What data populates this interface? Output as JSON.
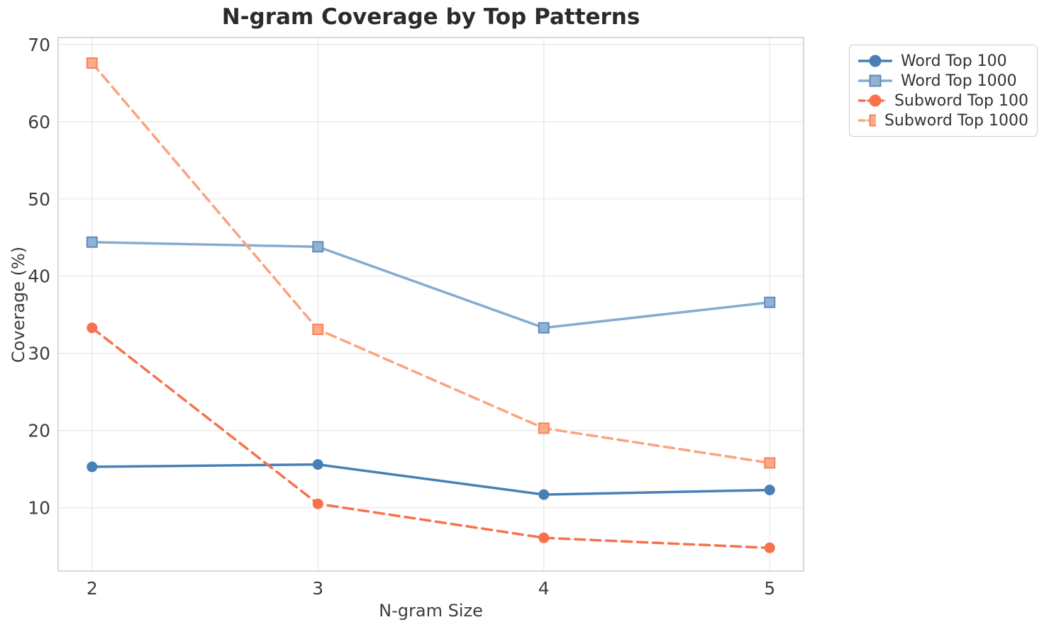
{
  "chart_data": {
    "type": "line",
    "title": "N-gram Coverage by Top Patterns",
    "xlabel": "N-gram Size",
    "ylabel": "Coverage (%)",
    "x": [
      2,
      3,
      4,
      5
    ],
    "xticks": [
      2,
      3,
      4,
      5
    ],
    "yticks": [
      10,
      20,
      30,
      40,
      50,
      60,
      70
    ],
    "xlim": [
      1.85,
      5.15
    ],
    "ylim": [
      1.8,
      70.9
    ],
    "grid": true,
    "legend_position": "outside-upper-right",
    "series": [
      {
        "name": "Word Top 100",
        "values": [
          15.3,
          15.6,
          11.7,
          12.3
        ],
        "color": "#4680b4",
        "marker_fill": "#4680b4",
        "marker_edge": "#4680b4",
        "line_style": "solid",
        "marker": "circle"
      },
      {
        "name": "Word Top 1000",
        "values": [
          44.4,
          43.8,
          33.3,
          36.6
        ],
        "color": "#85abd1",
        "marker_fill": "#8fb2d5",
        "marker_edge": "#5d8cbe",
        "line_style": "solid",
        "marker": "square"
      },
      {
        "name": "Subword Top 100",
        "values": [
          33.3,
          10.5,
          6.1,
          4.8
        ],
        "color": "#f7714c",
        "marker_fill": "#f7714c",
        "marker_edge": "#f7714c",
        "line_style": "dashed",
        "marker": "circle"
      },
      {
        "name": "Subword Top 1000",
        "values": [
          67.6,
          33.1,
          20.3,
          15.8
        ],
        "color": "#faa37f",
        "marker_fill": "#fbab88",
        "marker_edge": "#f8835d",
        "line_style": "dashed",
        "marker": "square"
      }
    ]
  },
  "style": {
    "grid_color": "#e9e9e9",
    "spine_color": "#cbcbcb",
    "tick_text_color": "#3d3d3d",
    "title_color": "#2b2b2b",
    "legend_text_color": "#333333",
    "background": "#ffffff"
  }
}
